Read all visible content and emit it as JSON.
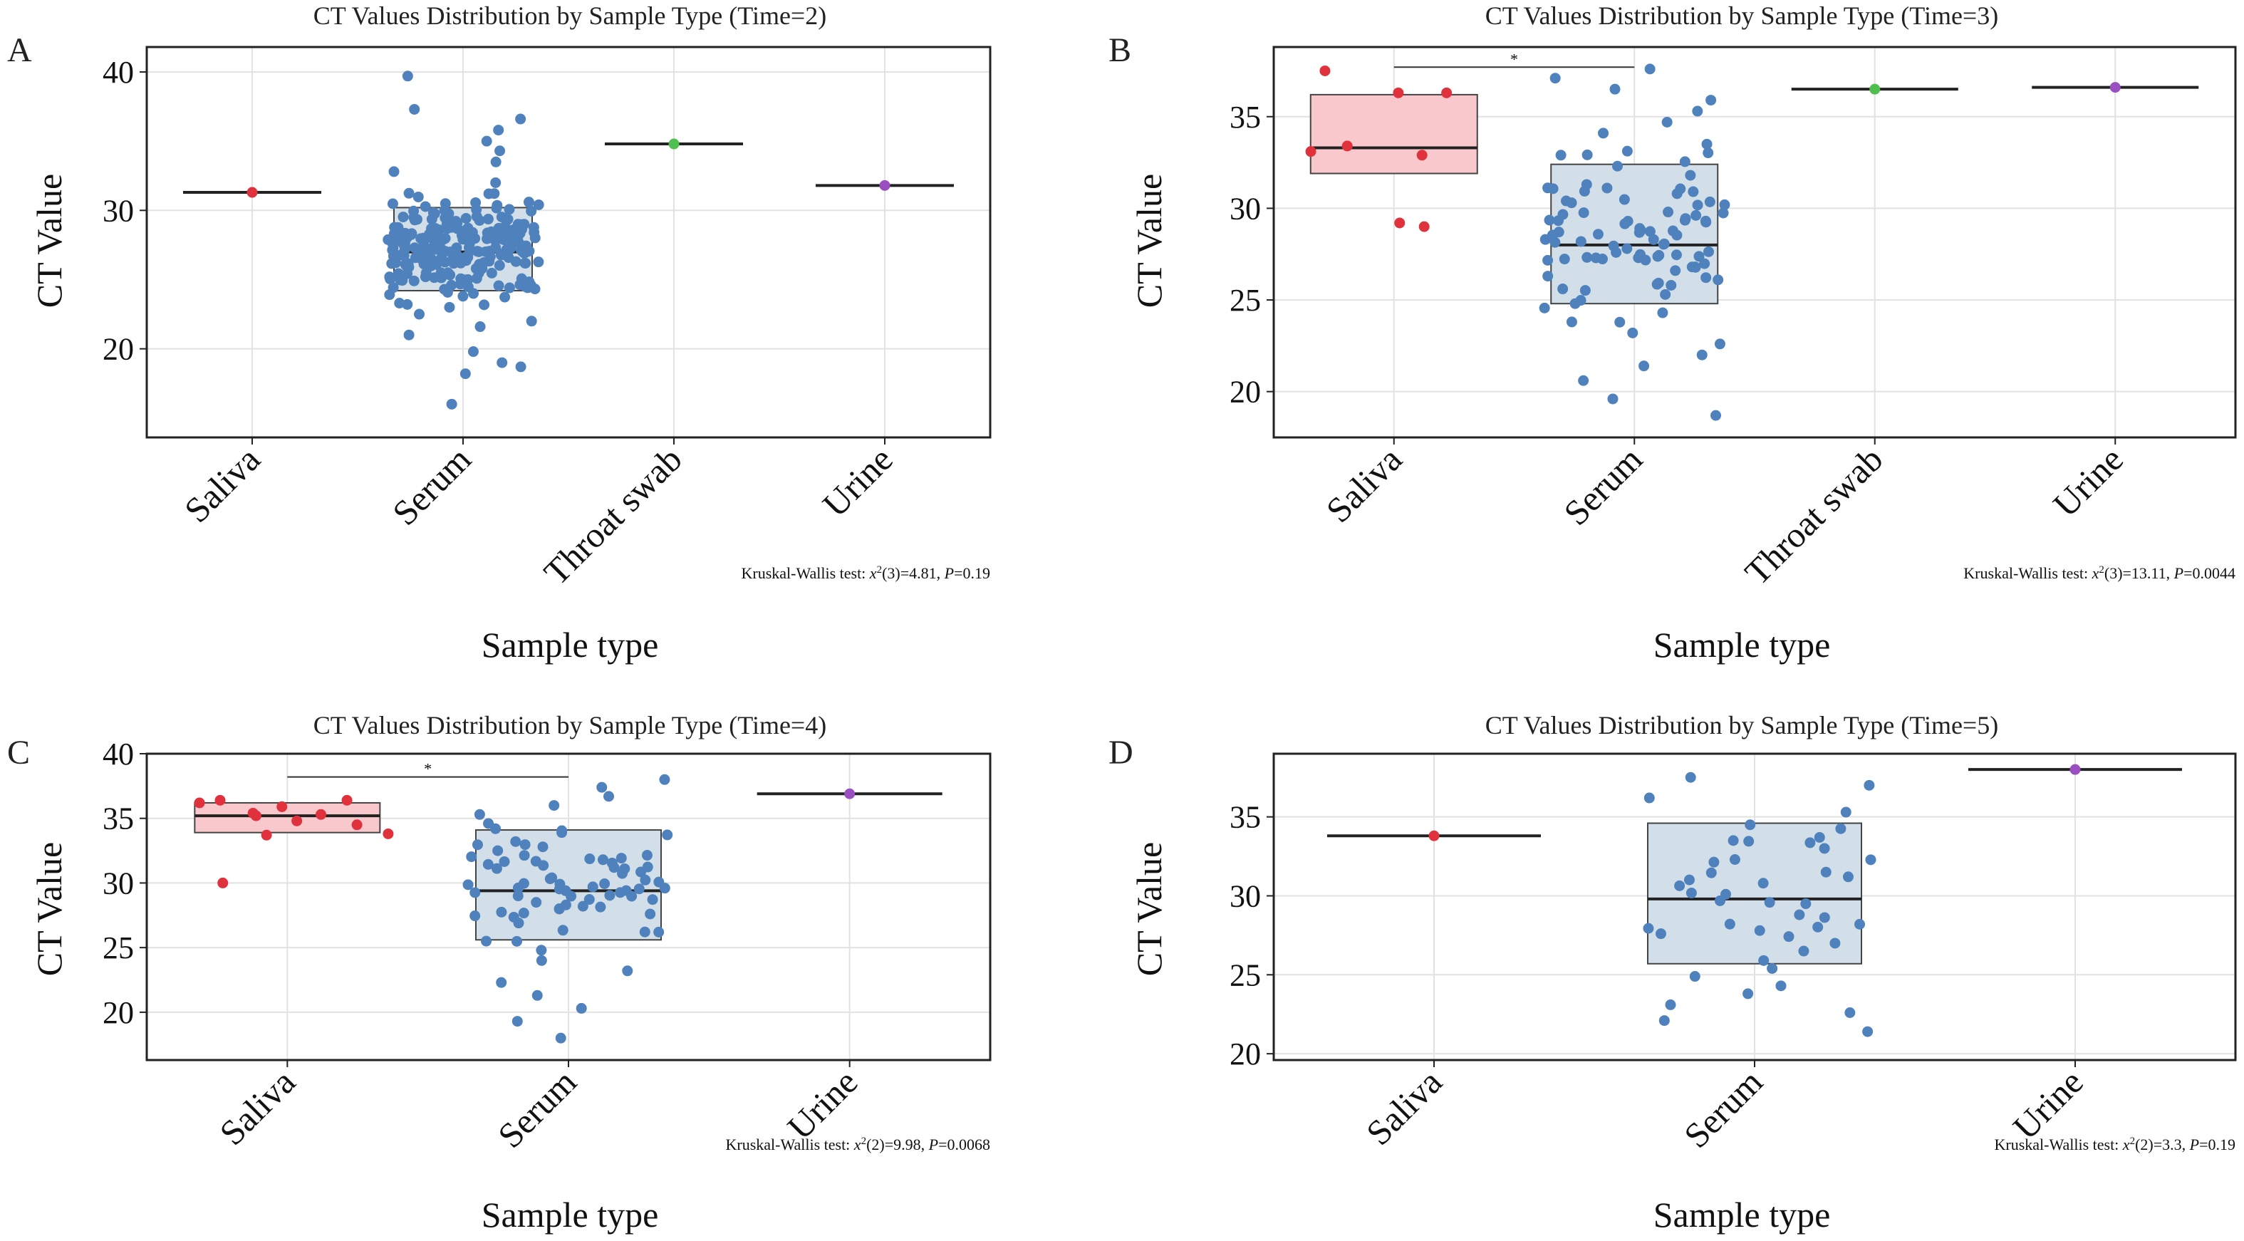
{
  "colors": {
    "Saliva_box": "#f9c8cc",
    "Saliva_point": "#e0323c",
    "Serum_box": "#d2dfe9",
    "Serum_point": "#4f82bd",
    "Throat swab_point": "#4fbf4f",
    "Urine_point": "#9a4fc0",
    "frame": "#222222",
    "grid": "#e2e2e2"
  },
  "chart_data": [
    {
      "panel": "A",
      "type": "scatter",
      "title": "CT Values Distribution by Sample Type (Time=2)",
      "xlabel": "Sample type",
      "ylabel": "CT Value",
      "ylim": [
        13.6,
        41.8
      ],
      "yticks": [
        "20",
        "30",
        "40"
      ],
      "categories": [
        "Saliva",
        "Serum",
        "Throat swab",
        "Urine"
      ],
      "boxes": [
        {
          "category": "Saliva",
          "q1": 31.3,
          "median": 31.3,
          "q3": 31.3
        },
        {
          "category": "Serum",
          "q1": 24.2,
          "median": 27.0,
          "q3": 30.2
        },
        {
          "category": "Throat swab",
          "q1": 34.8,
          "median": 34.8,
          "q3": 34.8
        },
        {
          "category": "Urine",
          "q1": 31.8,
          "median": 31.8,
          "q3": 31.8
        }
      ],
      "points": [
        {
          "category": "Saliva",
          "values": [
            31.3
          ]
        },
        {
          "category": "Serum",
          "n": 250,
          "min": 16.0,
          "max": 39.7,
          "values": [
            16.0,
            18.2,
            18.7,
            19.0,
            19.8,
            21.0,
            21.6,
            22.0,
            22.5,
            23.0,
            23.3,
            23.8,
            24.0,
            24.3,
            24.6,
            25.0,
            25.2,
            25.5,
            25.8,
            26.0,
            26.3,
            26.6,
            27.0,
            27.3,
            27.6,
            28.0,
            28.3,
            28.7,
            29.0,
            29.5,
            30.0,
            30.6,
            31.2,
            32.0,
            32.8,
            33.5,
            34.3,
            35.0,
            35.8,
            36.6,
            37.3,
            39.7
          ]
        },
        {
          "category": "Throat swab",
          "values": [
            34.8
          ]
        },
        {
          "category": "Urine",
          "values": [
            31.8
          ]
        }
      ],
      "annotations": [],
      "test": {
        "text": "Kruskal-Wallis test: ",
        "stat": "x",
        "sup": "2",
        "args": "(3)=4.81, ",
        "p_label": "P",
        "p_value": "=0.19"
      }
    },
    {
      "panel": "B",
      "type": "scatter",
      "title": "CT Values Distribution by Sample Type (Time=3)",
      "xlabel": "Sample type",
      "ylabel": "CT Value",
      "ylim": [
        17.5,
        38.8
      ],
      "yticks": [
        "20",
        "25",
        "30",
        "35"
      ],
      "categories": [
        "Saliva",
        "Serum",
        "Throat swab",
        "Urine"
      ],
      "boxes": [
        {
          "category": "Saliva",
          "q1": 31.9,
          "median": 33.3,
          "q3": 36.2
        },
        {
          "category": "Serum",
          "q1": 24.8,
          "median": 28.0,
          "q3": 32.4
        },
        {
          "category": "Throat swab",
          "q1": 36.5,
          "median": 36.5,
          "q3": 36.5
        },
        {
          "category": "Urine",
          "q1": 36.6,
          "median": 36.6,
          "q3": 36.6
        }
      ],
      "points": [
        {
          "category": "Saliva",
          "values": [
            29.0,
            29.2,
            32.9,
            33.1,
            33.4,
            36.3,
            36.3,
            37.5
          ]
        },
        {
          "category": "Serum",
          "n": 100,
          "min": 18.7,
          "max": 37.6,
          "values": [
            18.7,
            19.6,
            20.6,
            21.4,
            22.0,
            22.6,
            23.2,
            23.8,
            24.3,
            24.8,
            25.3,
            25.8,
            26.3,
            26.8,
            27.3,
            27.8,
            28.3,
            28.8,
            29.3,
            29.8,
            30.3,
            30.8,
            31.3,
            31.8,
            32.3,
            32.9,
            33.5,
            34.1,
            34.7,
            35.3,
            35.9,
            36.5,
            37.1,
            37.6
          ]
        },
        {
          "category": "Throat swab",
          "values": [
            36.5
          ]
        },
        {
          "category": "Urine",
          "values": [
            36.6
          ]
        }
      ],
      "annotations": [
        {
          "from": "Saliva",
          "to": "Serum",
          "y": 37.7,
          "label": "*"
        }
      ],
      "test": {
        "text": "Kruskal-Wallis test: ",
        "stat": "x",
        "sup": "2",
        "args": "(3)=13.11, ",
        "p_label": "P",
        "p_value": "=0.0044"
      }
    },
    {
      "panel": "C",
      "type": "scatter",
      "title": "CT Values Distribution by Sample Type (Time=4)",
      "xlabel": "Sample type",
      "ylabel": "CT Value",
      "ylim": [
        16.3,
        40.0
      ],
      "yticks": [
        "20",
        "25",
        "30",
        "35",
        "40"
      ],
      "categories": [
        "Saliva",
        "Serum",
        "Urine"
      ],
      "boxes": [
        {
          "category": "Saliva",
          "q1": 33.9,
          "median": 35.2,
          "q3": 36.2
        },
        {
          "category": "Serum",
          "q1": 25.6,
          "median": 29.4,
          "q3": 34.1
        },
        {
          "category": "Urine",
          "q1": 36.9,
          "median": 36.9,
          "q3": 36.9
        }
      ],
      "points": [
        {
          "category": "Saliva",
          "values": [
            30.0,
            33.7,
            33.8,
            34.5,
            34.8,
            35.2,
            35.3,
            35.4,
            35.9,
            36.2,
            36.4,
            36.4
          ]
        },
        {
          "category": "Serum",
          "n": 80,
          "min": 18.0,
          "max": 38.0,
          "values": [
            18.0,
            19.3,
            20.3,
            21.3,
            22.3,
            23.2,
            24.0,
            24.8,
            25.5,
            26.2,
            26.9,
            27.6,
            28.3,
            29.0,
            29.7,
            30.4,
            31.1,
            31.8,
            32.5,
            33.2,
            33.9,
            34.6,
            35.3,
            36.0,
            36.7,
            37.4,
            38.0
          ]
        },
        {
          "category": "Urine",
          "values": [
            36.9
          ]
        }
      ],
      "annotations": [
        {
          "from": "Saliva",
          "to": "Serum",
          "y": 38.2,
          "label": "*"
        }
      ],
      "test": {
        "text": "Kruskal-Wallis test: ",
        "stat": "x",
        "sup": "2",
        "args": "(2)=9.98, ",
        "p_label": "P",
        "p_value": "=0.0068"
      }
    },
    {
      "panel": "D",
      "type": "scatter",
      "title": "CT Values Distribution by Sample Type (Time=5)",
      "xlabel": "Sample type",
      "ylabel": "CT Value",
      "ylim": [
        19.6,
        39.0
      ],
      "yticks": [
        "20",
        "25",
        "30",
        "35"
      ],
      "categories": [
        "Saliva",
        "Serum",
        "Urine"
      ],
      "boxes": [
        {
          "category": "Saliva",
          "q1": 33.8,
          "median": 33.8,
          "q3": 33.8
        },
        {
          "category": "Serum",
          "q1": 25.7,
          "median": 29.8,
          "q3": 34.6
        },
        {
          "category": "Urine",
          "q1": 38.0,
          "median": 38.0,
          "q3": 38.0
        }
      ],
      "points": [
        {
          "category": "Saliva",
          "values": [
            33.8
          ]
        },
        {
          "category": "Serum",
          "n": 45,
          "min": 21.4,
          "max": 37.5,
          "values": [
            21.4,
            22.1,
            22.6,
            23.1,
            23.8,
            24.3,
            24.9,
            25.4,
            25.9,
            26.5,
            27.0,
            27.6,
            28.2,
            28.8,
            29.5,
            30.1,
            30.8,
            31.5,
            32.3,
            33.0,
            33.7,
            34.5,
            35.3,
            36.2,
            37.0,
            37.5
          ]
        },
        {
          "category": "Urine",
          "values": [
            38.0
          ]
        }
      ],
      "annotations": [],
      "test": {
        "text": "Kruskal-Wallis test: ",
        "stat": "x",
        "sup": "2",
        "args": "(2)=3.3, ",
        "p_label": "P",
        "p_value": "=0.19"
      }
    }
  ]
}
